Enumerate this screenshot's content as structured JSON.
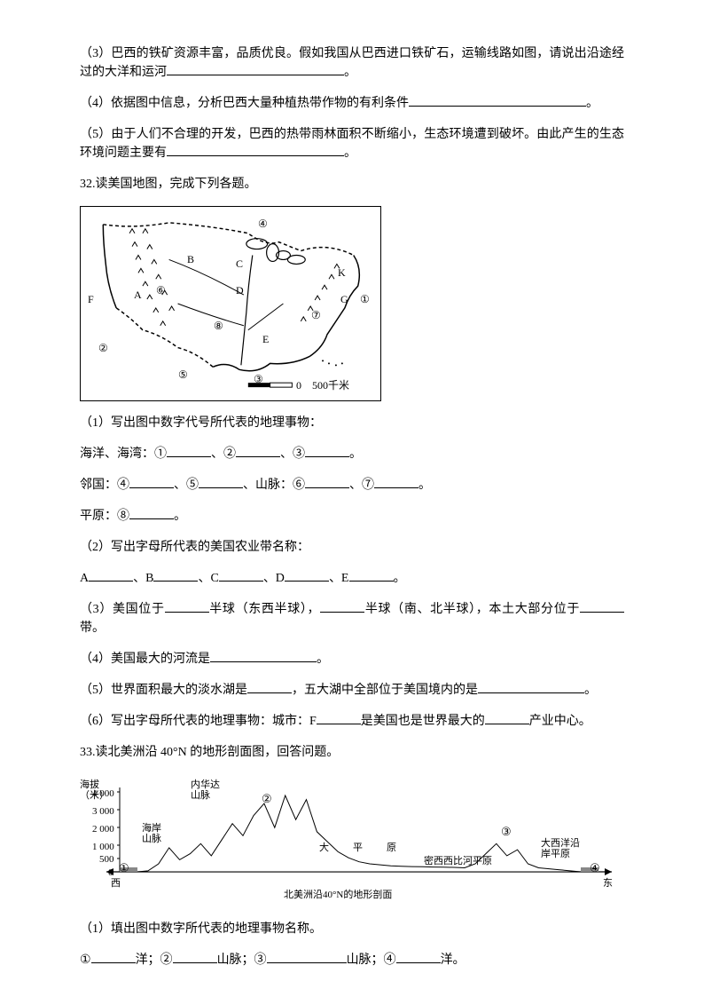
{
  "q31": {
    "p3": "（3）巴西的铁矿资源丰富，品质优良。假如我国从巴西进口铁矿石，运输线路如图，请说出沿途经过的大洋和运河",
    "p3_suffix": "。",
    "p4": "（4）依据图中信息，分析巴西大量种植热带作物的有利条件",
    "p4_suffix": "。",
    "p5": "（5）由于人们不合理的开发，巴西的热带雨林面积不断缩小，生态环境遭到破坏。由此产生的生态环境问题主要有",
    "p5_suffix": "。"
  },
  "q32": {
    "title": "32.读美国地图，完成下列各题。",
    "map": {
      "labels": {
        "A": "A",
        "B": "B",
        "C": "C",
        "D": "D",
        "E": "E",
        "F": "F",
        "G": "G",
        "K": "K"
      },
      "numbers": {
        "1": "①",
        "2": "②",
        "3": "③",
        "4": "④",
        "5": "⑤",
        "6": "⑥",
        "7": "⑦",
        "8": "⑧"
      },
      "scale": "0　500千米",
      "border_color": "#000000",
      "line_color": "#000000",
      "dash_pattern": "4,3"
    },
    "p1": "（1）写出图中数字代号所代表的地理事物：",
    "p1a_label": "海洋、海湾：①",
    "p1a_sep": "、②",
    "p1a_sep2": "、③",
    "p1a_end": "。",
    "p1b_label": "邻国：④",
    "p1b_sep": "、⑤",
    "p1b_sep2": "、山脉：⑥",
    "p1b_sep3": "、⑦",
    "p1b_end": "。",
    "p1c_label": "平原：⑧",
    "p1c_end": "。",
    "p2": "（2）写出字母所代表的美国农业带名称：",
    "p2a_A": "A",
    "p2a_B": "、B",
    "p2a_C": "、C",
    "p2a_D": "、D",
    "p2a_E": "、E",
    "p2a_end": "。",
    "p3_a": "（3）美国位于",
    "p3_b": "半球（东西半球），",
    "p3_c": "半球（南、北半球），本土大部分位于",
    "p3_d": "带。",
    "p4_a": "（4）美国最大的河流是",
    "p4_b": "。",
    "p5_a": "（5）世界面积最大的淡水湖是",
    "p5_b": "，五大湖中全部位于美国境内的是",
    "p5_c": "。",
    "p6_a": "（6）写出字母所代表的地理事物：城市：F",
    "p6_b": "是美国也是世界最大的",
    "p6_c": "产业中心。"
  },
  "q33": {
    "title": "33.读北美洲沿 40°N 的地形剖面图，回答问题。",
    "profile": {
      "ylabel": "海拔\n（米）",
      "yticks": [
        "4 000",
        "3 000",
        "2 000",
        "1 000",
        "500",
        "0"
      ],
      "yvalues": [
        4000,
        3000,
        2000,
        1000,
        500,
        0
      ],
      "ymax": 4200,
      "labels": {
        "coast_mtn": "海岸\n山脉",
        "nevada": "内华达\n山脉",
        "central": "大　平　原",
        "mississippi": "密西西比河平原",
        "atlantic": "大西洋沿\n岸平原"
      },
      "markers": {
        "1": "①",
        "2": "②",
        "3": "③",
        "4": "④"
      },
      "west": "西",
      "east": "东",
      "caption": "北美洲沿40°N的地形剖面",
      "fill_color": "#ffffff",
      "line_color": "#000000",
      "water_fill": "#888888",
      "elevations": [
        0,
        50,
        400,
        1200,
        600,
        900,
        1400,
        800,
        1600,
        2400,
        1800,
        2800,
        3400,
        2200,
        3800,
        2600,
        3600,
        2000,
        1500,
        1000,
        700,
        500,
        400,
        350,
        300,
        280,
        260,
        250,
        240,
        230,
        220,
        200,
        400,
        900,
        1400,
        800,
        1100,
        400,
        200,
        150,
        100,
        50,
        0
      ]
    },
    "p1": "（1）填出图中数字所代表的地理事物名称。",
    "p1a_1": "①",
    "p1a_1b": "洋；②",
    "p1a_2b": "山脉；③",
    "p1a_3b": "山脉；④",
    "p1a_4b": "洋。"
  },
  "style": {
    "font_size_body": 14,
    "font_size_map_label": 12,
    "font_size_profile_label": 11,
    "text_color": "#000000",
    "bg_color": "#ffffff"
  }
}
